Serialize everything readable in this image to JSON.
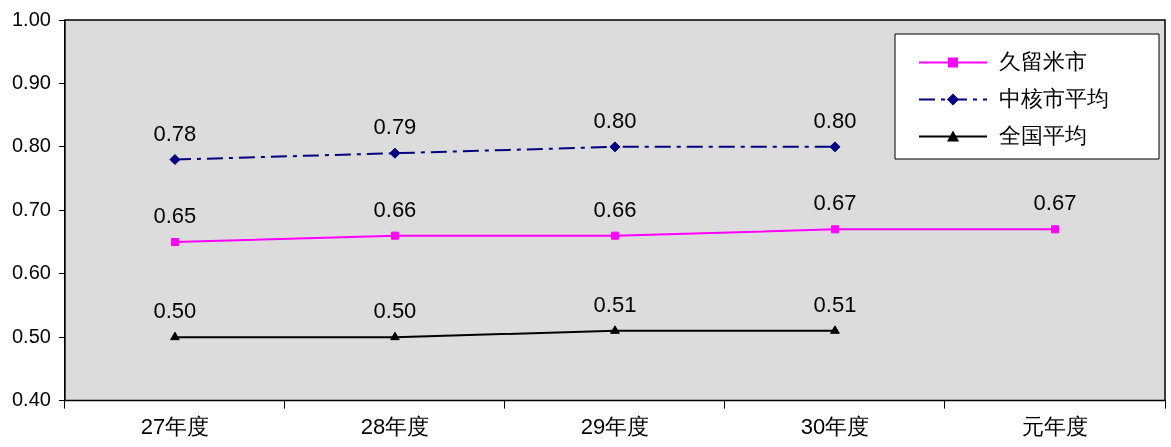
{
  "chart_data": {
    "type": "line",
    "categories": [
      "27年度",
      "28年度",
      "29年度",
      "30年度",
      "元年度"
    ],
    "series": [
      {
        "name": "久留米市",
        "color": "#ff00ff",
        "marker": "square",
        "line_style": "solid",
        "values": [
          0.65,
          0.66,
          0.66,
          0.67,
          0.67
        ],
        "value_labels": [
          "0.65",
          "0.66",
          "0.66",
          "0.67",
          "0.67"
        ]
      },
      {
        "name": "中核市平均",
        "color": "#000080",
        "marker": "diamond",
        "line_style": "dashed",
        "values": [
          0.78,
          0.79,
          0.8,
          0.8,
          null
        ],
        "value_labels": [
          "0.78",
          "0.79",
          "0.80",
          "0.80",
          null
        ]
      },
      {
        "name": "全国平均",
        "color": "#000000",
        "marker": "triangle",
        "line_style": "solid",
        "values": [
          0.5,
          0.5,
          0.51,
          0.51,
          null
        ],
        "value_labels": [
          "0.50",
          "0.50",
          "0.51",
          "0.51",
          null
        ]
      }
    ],
    "ylim": [
      0.4,
      1.0
    ],
    "yticks": [
      {
        "value": 0.4,
        "label": "0.40"
      },
      {
        "value": 0.5,
        "label": "0.50"
      },
      {
        "value": 0.6,
        "label": "0.60"
      },
      {
        "value": 0.7,
        "label": "0.70"
      },
      {
        "value": 0.8,
        "label": "0.80"
      },
      {
        "value": 0.9,
        "label": "0.90"
      },
      {
        "value": 1.0,
        "label": "1.00"
      }
    ],
    "grid": false,
    "legend": "top right"
  }
}
